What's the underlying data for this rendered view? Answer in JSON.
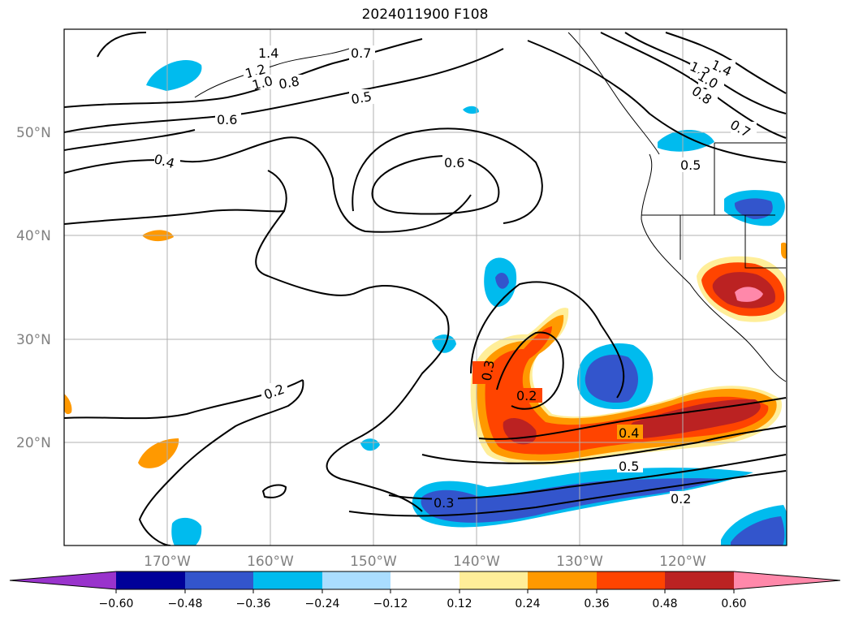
{
  "title": "2024011900 F108",
  "lat_labels": [
    "50°N",
    "40°N",
    "30°N",
    "20°N"
  ],
  "lon_labels": [
    "170°W",
    "160°W",
    "150°W",
    "140°W",
    "130°W",
    "120°W"
  ],
  "contour_labels": [
    "1.4",
    "1.2",
    "1.0",
    "0.8",
    "0.7",
    "0.5",
    "0.6",
    "0.4",
    "0.6",
    "1.4",
    "1.2",
    "1.0",
    "0.8",
    "0.7",
    "0.5",
    "0.3",
    "0.2",
    "0.2",
    "0.4",
    "0.5",
    "0.3",
    "0.2"
  ],
  "colorbar": {
    "colors": [
      "#9933cc",
      "#000099",
      "#3355cc",
      "#00bbee",
      "#aaddff",
      "#ffffff",
      "#ffee99",
      "#ff9900",
      "#ff4400",
      "#bb2222",
      "#ff88aa"
    ],
    "tick_labels": [
      "−0.60",
      "−0.48",
      "−0.36",
      "−0.24",
      "−0.12",
      "0.12",
      "0.24",
      "0.36",
      "0.48",
      "0.60"
    ]
  }
}
